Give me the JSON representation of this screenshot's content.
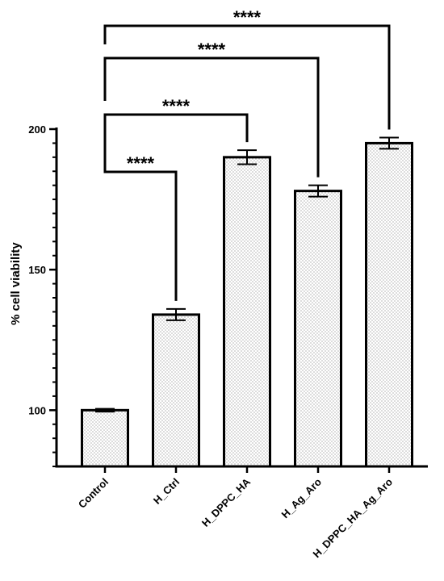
{
  "chart_data": {
    "type": "bar",
    "title": "",
    "xlabel": "",
    "ylabel": "% cell viability",
    "ylim": [
      80,
      200
    ],
    "yticks_major": [
      100,
      150,
      200
    ],
    "yticks_minor_step": 5,
    "categories": [
      "Control",
      "H_Ctrl",
      "H_DPPC_HA",
      "H_Ag_Aro",
      "H_DPPC_HA_Ag_Aro"
    ],
    "values": [
      100,
      134,
      190,
      178,
      195
    ],
    "errors": [
      0.5,
      2,
      2.5,
      2,
      2
    ],
    "bar_fill": "dotted",
    "grid": false,
    "comparisons": [
      {
        "from": "Control",
        "to": "H_Ctrl",
        "label": "****"
      },
      {
        "from": "Control",
        "to": "H_DPPC_HA",
        "label": "****"
      },
      {
        "from": "Control",
        "to": "H_Ag_Aro",
        "label": "****"
      },
      {
        "from": "Control",
        "to": "H_DPPC_HA_Ag_Aro",
        "label": "****"
      }
    ]
  }
}
